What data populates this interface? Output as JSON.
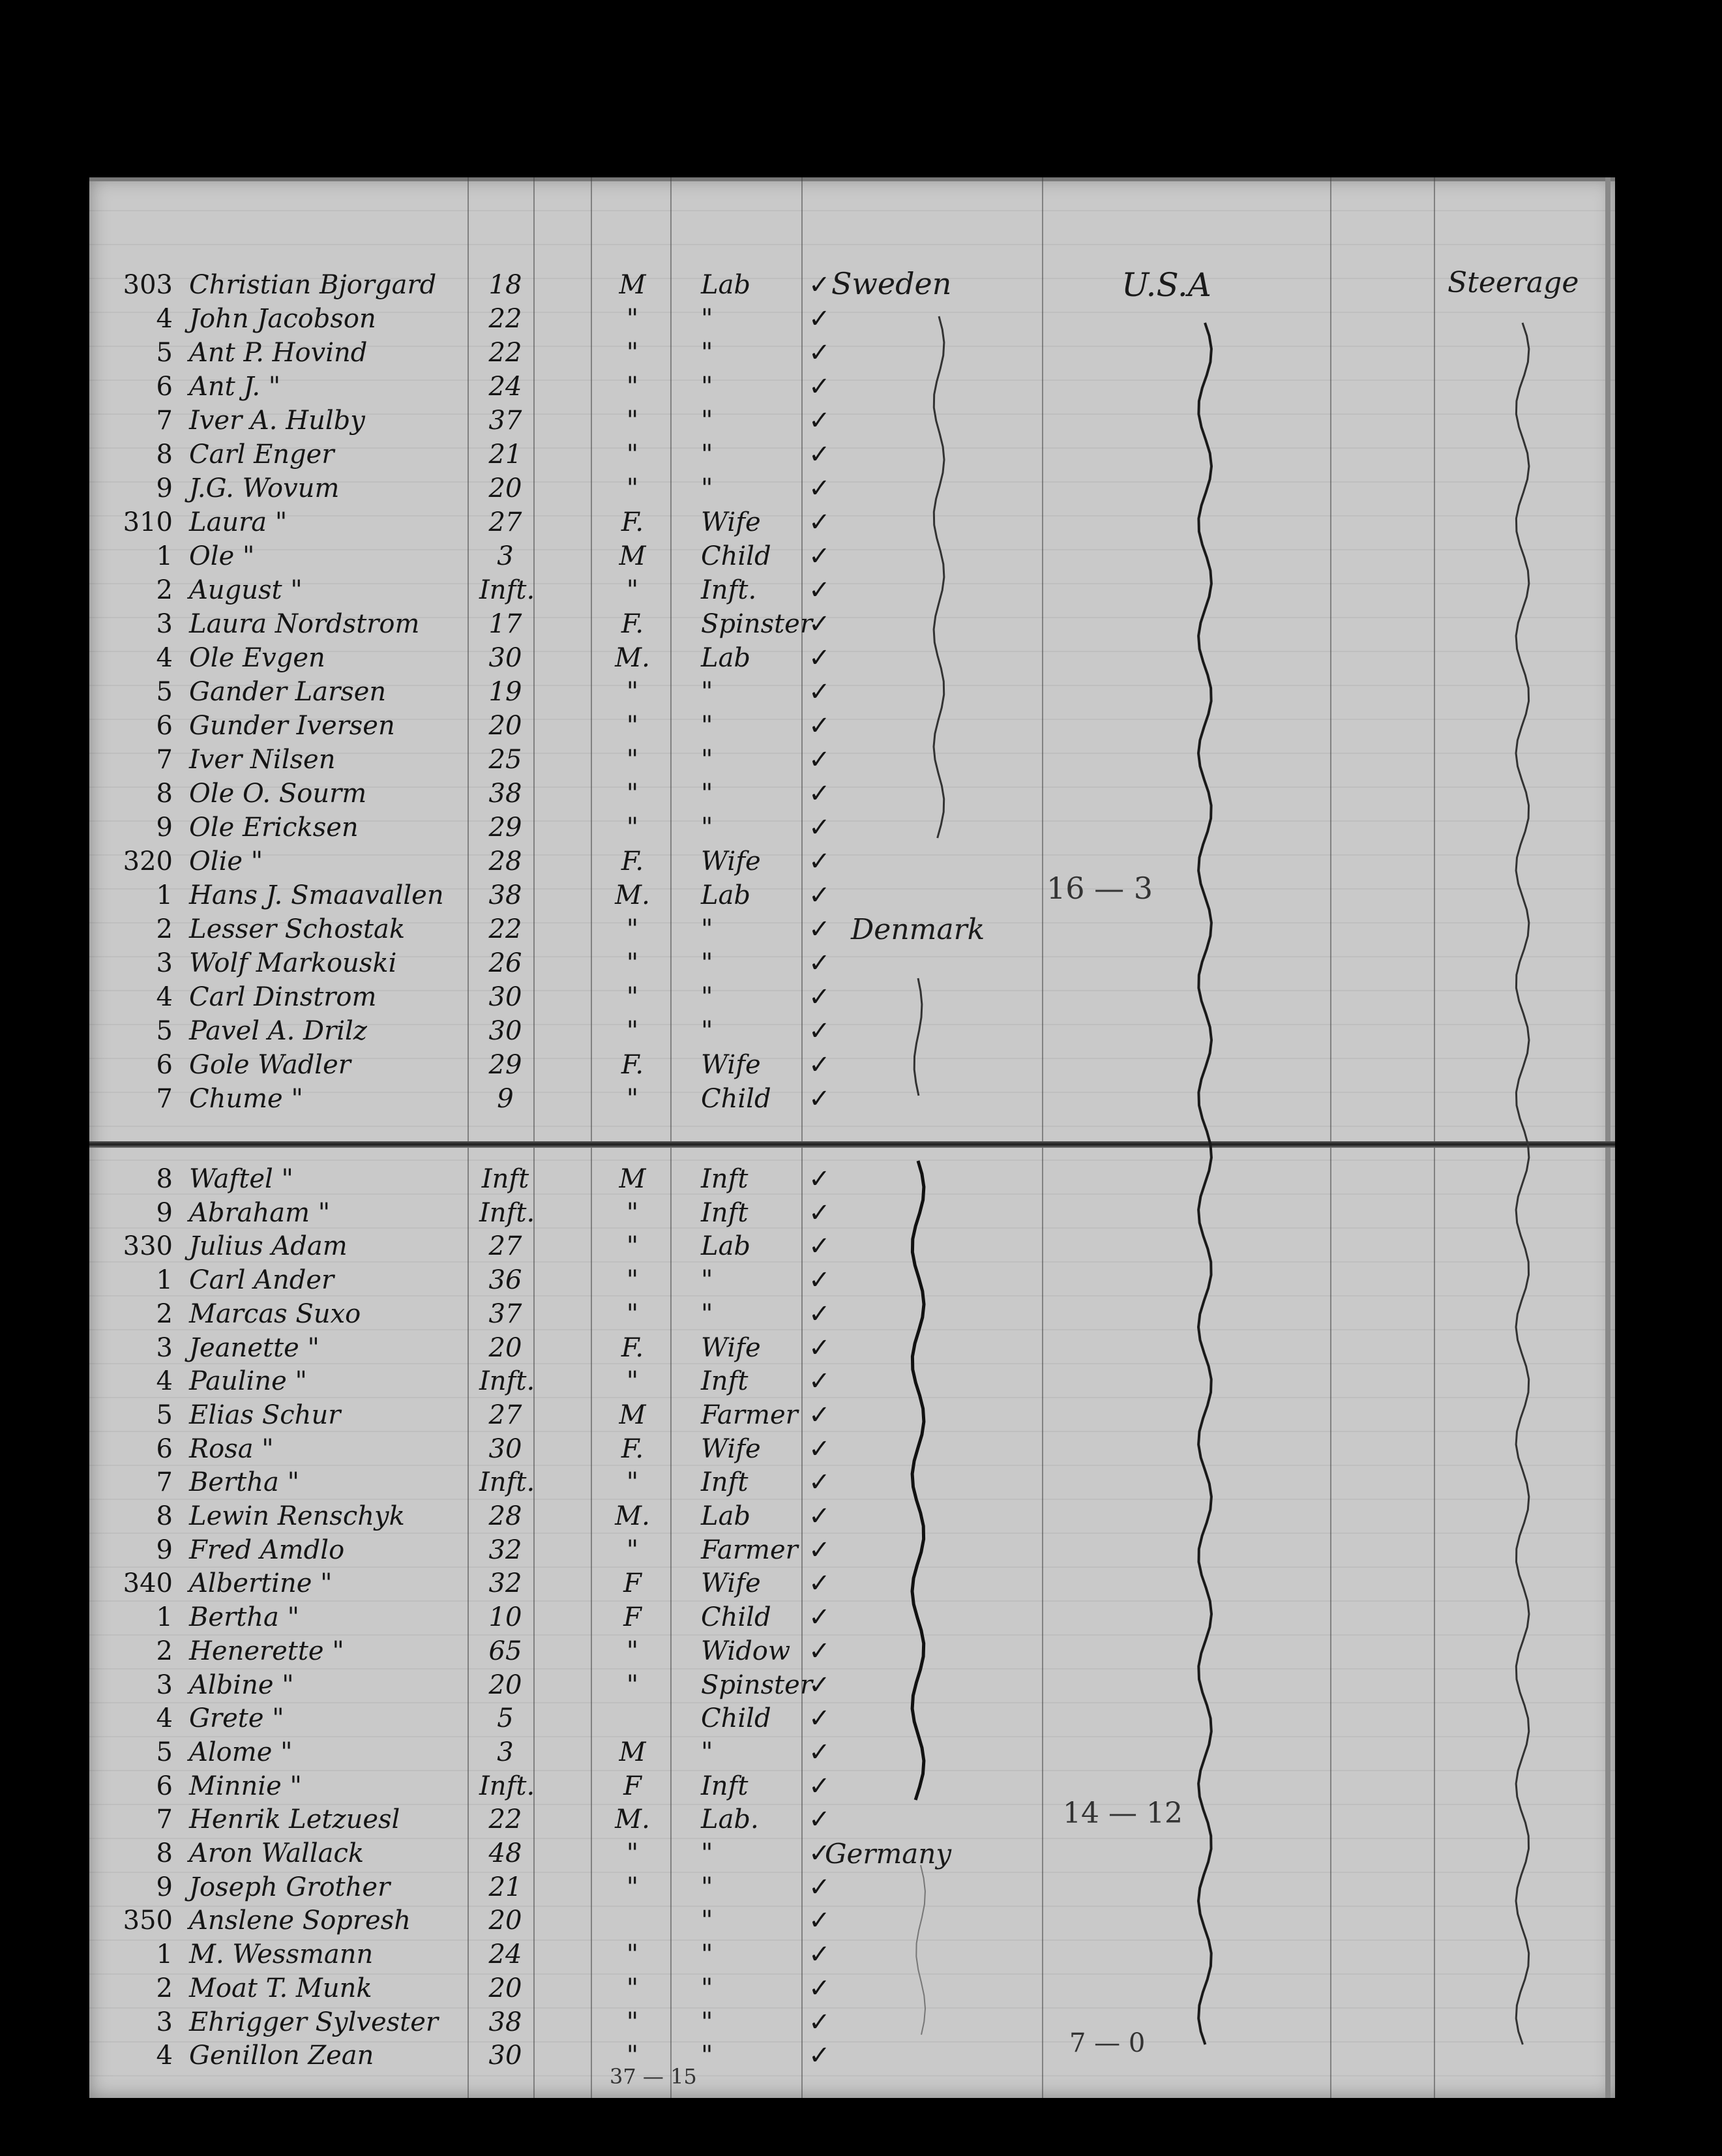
{
  "columns_header_row": {
    "country": "Sweden",
    "destination": "U.S.A",
    "class": "Steerage"
  },
  "ditto": "\"",
  "check": "✓",
  "rows": [
    {
      "num": "303",
      "name": "Christian Bjorgard",
      "age": "18",
      "sex": "M",
      "occ": "Lab"
    },
    {
      "num": "4",
      "name": "John Jacobson",
      "age": "22",
      "sex": "\"",
      "occ": "\""
    },
    {
      "num": "5",
      "name": "Ant P. Hovind",
      "age": "22",
      "sex": "\"",
      "occ": "\""
    },
    {
      "num": "6",
      "name": "Ant J.   \"",
      "age": "24",
      "sex": "\"",
      "occ": "\""
    },
    {
      "num": "7",
      "name": "Iver A. Hulby",
      "age": "37",
      "sex": "\"",
      "occ": "\""
    },
    {
      "num": "8",
      "name": "Carl Enger",
      "age": "21",
      "sex": "\"",
      "occ": "\""
    },
    {
      "num": "9",
      "name": "J.G. Wovum",
      "age": "20",
      "sex": "\"",
      "occ": "\""
    },
    {
      "num": "310",
      "name": "Laura      \"",
      "age": "27",
      "sex": "F.",
      "occ": "Wife"
    },
    {
      "num": "1",
      "name": "Ole        \"",
      "age": "3",
      "sex": "M",
      "occ": "Child"
    },
    {
      "num": "2",
      "name": "August     \"",
      "age": "Inft.",
      "sex": "\"",
      "occ": "Inft."
    },
    {
      "num": "3",
      "name": "Laura Nordstrom",
      "age": "17",
      "sex": "F.",
      "occ": "Spinster"
    },
    {
      "num": "4",
      "name": "Ole Evgen",
      "age": "30",
      "sex": "M.",
      "occ": "Lab"
    },
    {
      "num": "5",
      "name": "Gander Larsen",
      "age": "19",
      "sex": "\"",
      "occ": "\""
    },
    {
      "num": "6",
      "name": "Gunder Iversen",
      "age": "20",
      "sex": "\"",
      "occ": "\""
    },
    {
      "num": "7",
      "name": "Iver Nilsen",
      "age": "25",
      "sex": "\"",
      "occ": "\""
    },
    {
      "num": "8",
      "name": "Ole O. Sourm",
      "age": "38",
      "sex": "\"",
      "occ": "\""
    },
    {
      "num": "9",
      "name": "Ole Ericksen",
      "age": "29",
      "sex": "\"",
      "occ": "\""
    },
    {
      "num": "320",
      "name": "Olie       \"",
      "age": "28",
      "sex": "F.",
      "occ": "Wife"
    },
    {
      "num": "1",
      "name": "Hans J. Smaavallen",
      "age": "38",
      "sex": "M.",
      "occ": "Lab"
    },
    {
      "num": "2",
      "name": "Lesser Schostak",
      "age": "22",
      "sex": "\"",
      "occ": "\""
    },
    {
      "num": "3",
      "name": "Wolf Markouski",
      "age": "26",
      "sex": "\"",
      "occ": "\""
    },
    {
      "num": "4",
      "name": "Carl Dinstrom",
      "age": "30",
      "sex": "\"",
      "occ": "\""
    },
    {
      "num": "5",
      "name": "Pavel A. Drilz",
      "age": "30",
      "sex": "\"",
      "occ": "\""
    },
    {
      "num": "6",
      "name": "Gole Wadler",
      "age": "29",
      "sex": "F.",
      "occ": "Wife"
    },
    {
      "num": "7",
      "name": "Chume      \"",
      "age": "9",
      "sex": "\"",
      "occ": "Child"
    },
    {
      "num": "8",
      "name": "Waftel     \"",
      "age": "Inft",
      "sex": "M",
      "occ": "Inft"
    },
    {
      "num": "9",
      "name": "Abraham    \"",
      "age": "Inft.",
      "sex": "\"",
      "occ": "Inft"
    },
    {
      "num": "330",
      "name": "Julius Adam",
      "age": "27",
      "sex": "\"",
      "occ": "Lab"
    },
    {
      "num": "1",
      "name": "Carl Ander",
      "age": "36",
      "sex": "\"",
      "occ": "\""
    },
    {
      "num": "2",
      "name": "Marcas Suxo",
      "age": "37",
      "sex": "\"",
      "occ": "\""
    },
    {
      "num": "3",
      "name": "Jeanette   \"",
      "age": "20",
      "sex": "F.",
      "occ": "Wife"
    },
    {
      "num": "4",
      "name": "Pauline    \"",
      "age": "Inft.",
      "sex": "\"",
      "occ": "Inft"
    },
    {
      "num": "5",
      "name": "Elias Schur",
      "age": "27",
      "sex": "M",
      "occ": "Farmer"
    },
    {
      "num": "6",
      "name": "Rosa       \"",
      "age": "30",
      "sex": "F.",
      "occ": "Wife"
    },
    {
      "num": "7",
      "name": "Bertha     \"",
      "age": "Inft.",
      "sex": "\"",
      "occ": "Inft"
    },
    {
      "num": "8",
      "name": "Lewin Renschyk",
      "age": "28",
      "sex": "M.",
      "occ": "Lab"
    },
    {
      "num": "9",
      "name": "Fred Amdlo",
      "age": "32",
      "sex": "\"",
      "occ": "Farmer"
    },
    {
      "num": "340",
      "name": "Albertine  \"",
      "age": "32",
      "sex": "F",
      "occ": "Wife"
    },
    {
      "num": "1",
      "name": "Bertha     \"",
      "age": "10",
      "sex": "F",
      "occ": "Child"
    },
    {
      "num": "2",
      "name": "Henerette  \"",
      "age": "65",
      "sex": "\"",
      "occ": "Widow"
    },
    {
      "num": "3",
      "name": "Albine     \"",
      "age": "20",
      "sex": "\"",
      "occ": "Spinster"
    },
    {
      "num": "4",
      "name": "Grete      \"",
      "age": "5",
      "sex": "",
      "occ": "Child"
    },
    {
      "num": "5",
      "name": "Alome      \"",
      "age": "3",
      "sex": "M",
      "occ": "\""
    },
    {
      "num": "6",
      "name": "Minnie     \"",
      "age": "Inft.",
      "sex": "F",
      "occ": "Inft"
    },
    {
      "num": "7",
      "name": "Henrik Letzuesl",
      "age": "22",
      "sex": "M.",
      "occ": "Lab."
    },
    {
      "num": "8",
      "name": "Aron Wallack",
      "age": "48",
      "sex": "\"",
      "occ": "\""
    },
    {
      "num": "9",
      "name": "Joseph Grother",
      "age": "21",
      "sex": "\"",
      "occ": "\""
    },
    {
      "num": "350",
      "name": "Anslene Sopresh",
      "age": "20",
      "sex": "",
      "occ": "\""
    },
    {
      "num": "1",
      "name": "M. Wessmann",
      "age": "24",
      "sex": "\"",
      "occ": "\""
    },
    {
      "num": "2",
      "name": "Moat T. Munk",
      "age": "20",
      "sex": "\"",
      "occ": "\""
    },
    {
      "num": "3",
      "name": "Ehrigger Sylvester",
      "age": "38",
      "sex": "\"",
      "occ": "\""
    },
    {
      "num": "4",
      "name": "Genillon Zean",
      "age": "30",
      "sex": "\"",
      "occ": "\""
    }
  ],
  "annotations": {
    "denmark": "Denmark",
    "germany": "Germany",
    "total_1": "16 — 3",
    "total_2": "14 — 12",
    "total_3": "7 — 0",
    "total_bottom": "37 — 15"
  },
  "colors": {
    "paper": "#c9c9c9",
    "ink": "#151515",
    "background": "#000000"
  }
}
